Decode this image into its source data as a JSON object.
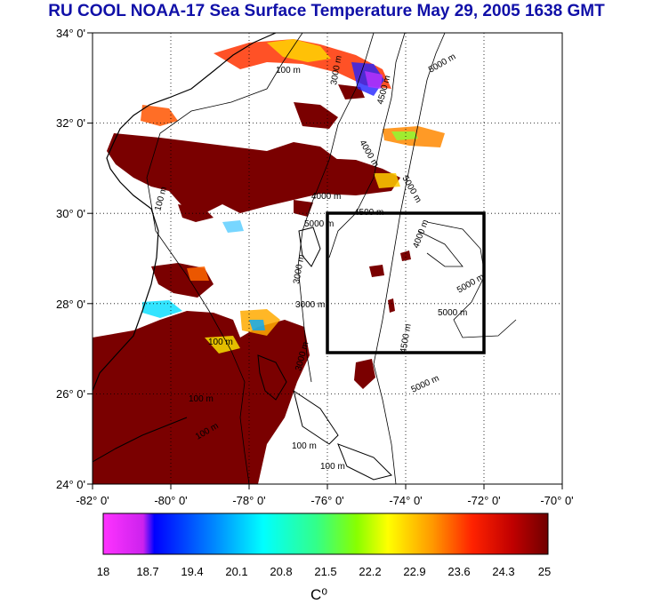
{
  "header": {
    "title": "RU COOL  NOAA-17 Sea Surface Temperature May 29, 2005 1638 GMT"
  },
  "map": {
    "lat_labels": [
      "34° 0'",
      "32° 0'",
      "30° 0'",
      "28° 0'",
      "26° 0'",
      "24° 0'"
    ],
    "lon_labels": [
      "-82° 0'",
      "-80° 0'",
      "-78° 0'",
      "-76° 0'",
      "-74° 0'",
      "-72° 0'",
      "-70° 0'"
    ],
    "lat_range": [
      24,
      34
    ],
    "lon_range": [
      -82,
      -70
    ],
    "grid": "dotted",
    "box_region": {
      "lon": [
        -76,
        -72
      ],
      "lat": [
        27,
        30
      ]
    },
    "contour_labels": [
      "100 m",
      "100 m",
      "100 m",
      "100 m",
      "100 m",
      "100 m",
      "100 m",
      "3000 m",
      "3000 m",
      "3000 m",
      "3000 m",
      "4000 m",
      "4000 m",
      "4000 m",
      "4500 m",
      "4500 m",
      "4500 m",
      "5000 m",
      "5000 m",
      "5000 m",
      "5000 m",
      "5000 m",
      "5000 m"
    ],
    "colors": {
      "land": "#ffffff",
      "warm_water": "#7a0000",
      "box": "#000000"
    }
  },
  "colorbar": {
    "labels": [
      "18",
      "18.7",
      "19.4",
      "20.1",
      "20.8",
      "21.5",
      "22.2",
      "22.9",
      "23.6",
      "24.3",
      "25"
    ],
    "unit": "C⁰",
    "range": [
      18,
      25
    ],
    "gradient": [
      "#ff33ff",
      "#cc22ee",
      "#0000ff",
      "#0088ff",
      "#00ffff",
      "#33ff88",
      "#88ff00",
      "#ffff00",
      "#ff9900",
      "#ff2200",
      "#c00000",
      "#700000"
    ]
  }
}
